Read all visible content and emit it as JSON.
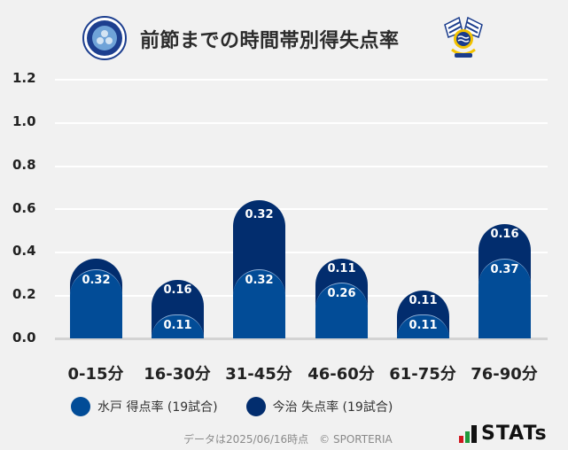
{
  "header": {
    "title": "前節までの時間帯別得失点率",
    "left_logo": "mito-hollyhock-crest",
    "right_logo": "fc-imabari-crest"
  },
  "colors": {
    "home": "#024c97",
    "away": "#022d6e",
    "background": "#f1f1f1",
    "grid": "#ffffff"
  },
  "chart_data": {
    "type": "bar",
    "stacked": true,
    "title": "前節までの時間帯別得失点率",
    "xlabel": "",
    "ylabel": "",
    "ylim": [
      0,
      1.2
    ],
    "yticks": [
      "0.0",
      "0.2",
      "0.4",
      "0.6",
      "0.8",
      "1.0",
      "1.2"
    ],
    "grid": true,
    "legend_position": "bottom",
    "categories": [
      "0-15分",
      "16-30分",
      "31-45分",
      "46-60分",
      "61-75分",
      "76-90分"
    ],
    "series": [
      {
        "name": "水戸 得点率 (19試合)",
        "color": "#024c97",
        "values": [
          0.32,
          0.11,
          0.32,
          0.26,
          0.11,
          0.37
        ],
        "labels": [
          "0.32",
          "0.11",
          "0.32",
          "0.26",
          "0.11",
          "0.37"
        ]
      },
      {
        "name": "今治 失点率 (19試合)",
        "color": "#022d6e",
        "values": [
          0.05,
          0.16,
          0.32,
          0.11,
          0.11,
          0.16
        ],
        "labels": [
          "",
          "0.16",
          "0.32",
          "0.11",
          "0.11",
          "0.16"
        ]
      }
    ]
  },
  "legend": {
    "home_label": "水戸 得点率 (19試合)",
    "away_label": "今治 失点率 (19試合)"
  },
  "footer": {
    "note": "データは2025/06/16時点　© SPORTERIA",
    "brand": "STATs"
  }
}
